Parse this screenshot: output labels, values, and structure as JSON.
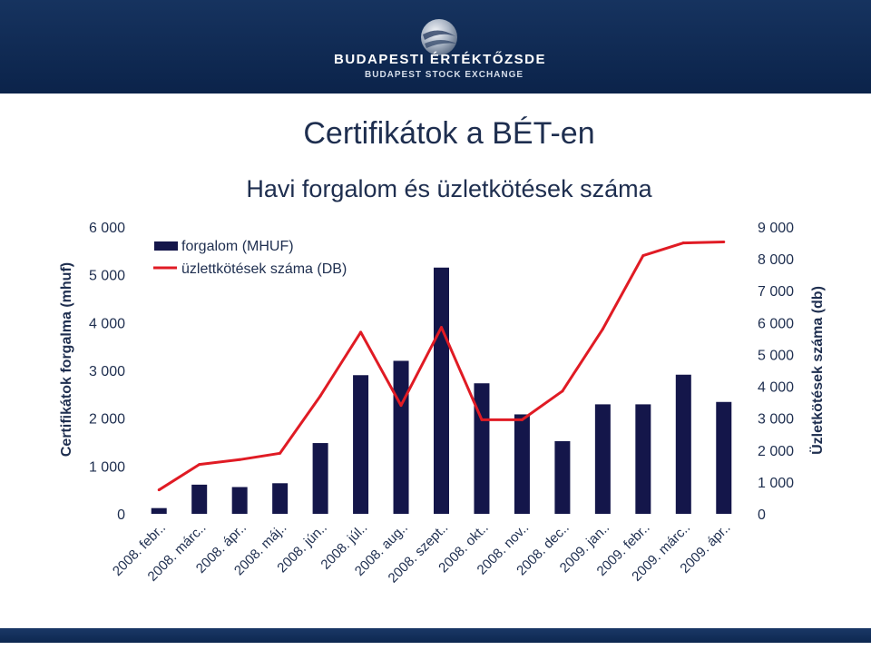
{
  "brand": {
    "name_line1": "BUDAPESTI   ÉRTÉKTŐZSDE",
    "name_line2": "BUDAPEST STOCK EXCHANGE",
    "banner_color": "#0f2a54"
  },
  "chart_data": {
    "type": "bar",
    "title": "Certifikátok a BÉT-en",
    "subtitle": "Havi forgalom és üzletkötések száma",
    "categories": [
      "2008. febr..",
      "2008. márc..",
      "2008. ápr..",
      "2008. máj..",
      "2008. jún..",
      "2008. júl..",
      "2008. aug..",
      "2008. szept..",
      "2008. okt..",
      "2008. nov..",
      "2008. dec..",
      "2009. jan..",
      "2009. febr..",
      "2009. márc..",
      "2009. ápr.."
    ],
    "ylabel": "Certifikátok forgalma (mhuf)",
    "y2label": "Üzletkötések száma (db)",
    "ylim": [
      0,
      6000
    ],
    "y2lim": [
      0,
      9000
    ],
    "yticks": [
      "0",
      "1 000",
      "2 000",
      "3 000",
      "4 000",
      "5 000",
      "6 000"
    ],
    "y2ticks": [
      "0",
      "1 000",
      "2 000",
      "3 000",
      "4 000",
      "5 000",
      "6 000",
      "7 000",
      "8 000",
      "9 000"
    ],
    "legend_position": "top-left",
    "grid": false,
    "series": [
      {
        "name": "forgalom (MHUF)",
        "kind": "bar",
        "axis": "left",
        "color": "#14164a",
        "values": [
          120,
          610,
          560,
          640,
          1480,
          2900,
          3200,
          5150,
          2730,
          2080,
          1520,
          2290,
          2290,
          2910,
          2340
        ]
      },
      {
        "name": "üzlettkötések száma (DB)",
        "kind": "line",
        "axis": "right",
        "color": "#e01b24",
        "values": [
          750,
          1550,
          1700,
          1900,
          3700,
          5700,
          3400,
          5850,
          2950,
          2950,
          3850,
          5800,
          8100,
          8500,
          8530
        ]
      }
    ]
  }
}
